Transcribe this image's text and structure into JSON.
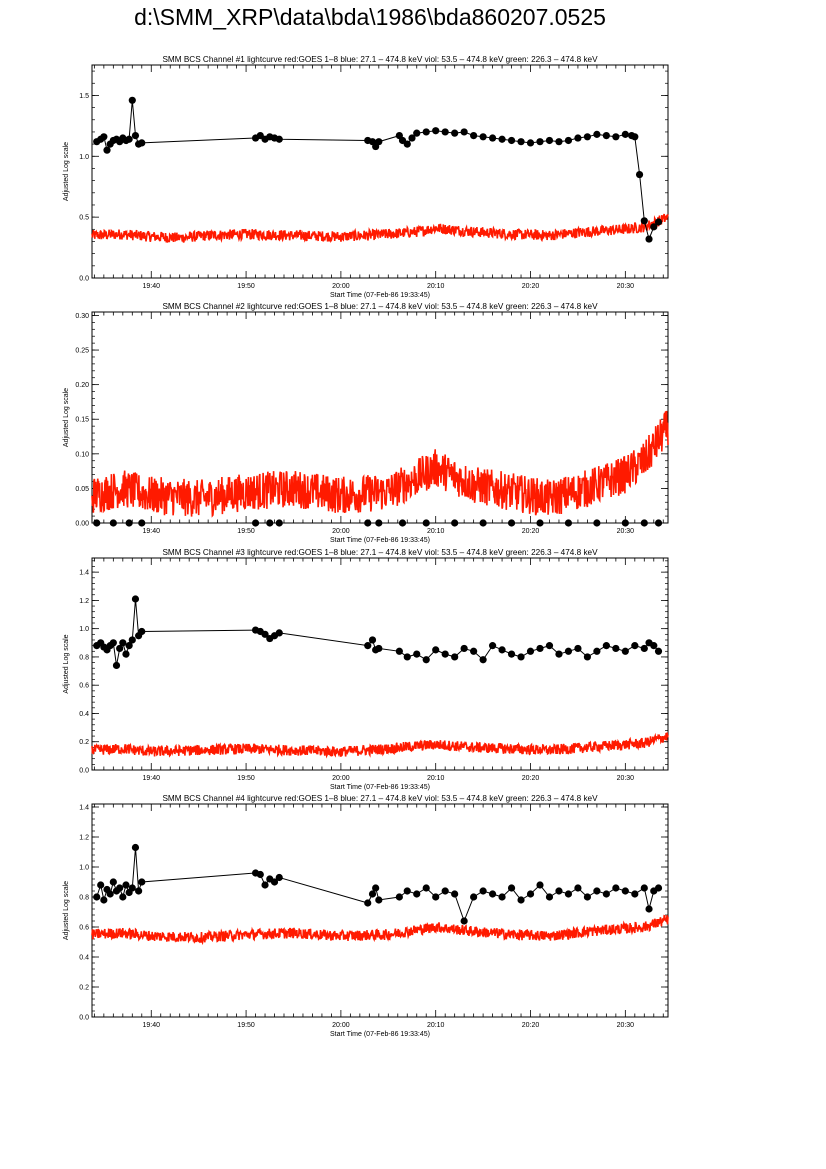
{
  "page": {
    "title": "d:\\SMM_XRP\\data\\bda\\1986\\bda860207.0525"
  },
  "colors": {
    "goes": "#ff1a00",
    "bcs": "#000000",
    "axis": "#000000"
  },
  "chart_data": [
    {
      "type": "line",
      "title": "SMM BCS Channel #1 lightcurve  red:GOES 1–8  blue: 27.1 – 474.8 keV  viol: 53.5 – 474.8 keV  green: 226.3 – 474.8 keV",
      "xlabel": "Start Time (07-Feb-86 19:33:45)",
      "ylabel": "Adjusted Log scale",
      "xlim": [
        "19:33:45",
        "20:34:30"
      ],
      "xticks": [
        "19:40",
        "19:50",
        "20:00",
        "20:10",
        "20:20",
        "20:30"
      ],
      "ylim": [
        0.0,
        1.75
      ],
      "yticks": [
        "0.0",
        "0.5",
        "1.0",
        "1.5"
      ],
      "ytick_values": [
        0.0,
        0.5,
        1.0,
        1.5
      ],
      "series": [
        {
          "color": "black",
          "marker": "circle",
          "x": [
            "19:34:15",
            "19:34:40",
            "19:35:00",
            "19:35:20",
            "19:35:40",
            "19:36:00",
            "19:36:20",
            "19:36:40",
            "19:37:00",
            "19:37:20",
            "19:37:40",
            "19:38:00",
            "19:38:20",
            "19:38:40",
            "19:39:00",
            "19:51:00",
            "19:51:30",
            "19:52:00",
            "19:52:30",
            "19:53:00",
            "19:53:30",
            "20:02:50",
            "20:03:20",
            "20:03:40",
            "20:04:00",
            "20:06:10",
            "20:06:30",
            "20:07:00",
            "20:07:30",
            "20:08:00",
            "20:09:00",
            "20:10:00",
            "20:11:00",
            "20:12:00",
            "20:13:00",
            "20:14:00",
            "20:15:00",
            "20:16:00",
            "20:17:00",
            "20:18:00",
            "20:19:00",
            "20:20:00",
            "20:21:00",
            "20:22:00",
            "20:23:00",
            "20:24:00",
            "20:25:00",
            "20:26:00",
            "20:27:00",
            "20:28:00",
            "20:29:00",
            "20:30:00",
            "20:30:40",
            "20:31:00",
            "20:31:30",
            "20:32:00",
            "20:32:30",
            "20:33:00",
            "20:33:30"
          ],
          "y": [
            1.12,
            1.14,
            1.16,
            1.05,
            1.1,
            1.13,
            1.14,
            1.12,
            1.15,
            1.13,
            1.14,
            1.46,
            1.17,
            1.1,
            1.11,
            1.15,
            1.17,
            1.14,
            1.16,
            1.15,
            1.14,
            1.13,
            1.12,
            1.08,
            1.12,
            1.17,
            1.13,
            1.1,
            1.15,
            1.19,
            1.2,
            1.21,
            1.2,
            1.19,
            1.2,
            1.17,
            1.16,
            1.15,
            1.14,
            1.13,
            1.12,
            1.11,
            1.12,
            1.13,
            1.12,
            1.13,
            1.15,
            1.16,
            1.18,
            1.17,
            1.16,
            1.18,
            1.17,
            1.16,
            0.85,
            0.47,
            0.32,
            0.42,
            0.46
          ]
        },
        {
          "color": "red",
          "x": [
            "19:33:45",
            "19:37:00",
            "19:40:00",
            "19:43:00",
            "19:46:00",
            "19:50:00",
            "19:55:00",
            "20:00:00",
            "20:05:00",
            "20:08:00",
            "20:10:00",
            "20:14:00",
            "20:18:00",
            "20:22:00",
            "20:26:00",
            "20:30:00",
            "20:32:00",
            "20:34:30"
          ],
          "y": [
            0.35,
            0.36,
            0.34,
            0.33,
            0.35,
            0.36,
            0.35,
            0.34,
            0.36,
            0.38,
            0.41,
            0.38,
            0.36,
            0.35,
            0.38,
            0.4,
            0.42,
            0.5
          ]
        }
      ]
    },
    {
      "type": "line",
      "title": "SMM BCS Channel #2 lightcurve  red:GOES 1–8  blue: 27.1 – 474.8 keV  viol: 53.5 – 474.8 keV  green: 226.3 – 474.8 keV",
      "xlabel": "Start Time (07-Feb-86 19:33:45)",
      "ylabel": "Adjusted Log scale",
      "xlim": [
        "19:33:45",
        "20:34:30"
      ],
      "xticks": [
        "19:40",
        "19:50",
        "20:00",
        "20:10",
        "20:20",
        "20:30"
      ],
      "ylim": [
        0.0,
        0.305
      ],
      "yticks": [
        "0.00",
        "0.05",
        "0.10",
        "0.15",
        "0.20",
        "0.25",
        "0.30"
      ],
      "ytick_values": [
        0.0,
        0.05,
        0.1,
        0.15,
        0.2,
        0.25,
        0.3
      ],
      "series": [
        {
          "color": "black",
          "marker": "circle",
          "x": [
            "19:34:15",
            "19:36:00",
            "19:37:40",
            "19:39:00",
            "19:51:00",
            "19:52:30",
            "19:53:30",
            "20:02:50",
            "20:04:00",
            "20:06:30",
            "20:09:00",
            "20:12:00",
            "20:15:00",
            "20:18:00",
            "20:21:00",
            "20:24:00",
            "20:27:00",
            "20:30:00",
            "20:32:00",
            "20:33:30"
          ],
          "y": [
            0.0,
            0.0,
            0.0,
            0.0,
            0.0,
            0.0,
            0.0,
            0.0,
            0.0,
            0.0,
            0.0,
            0.0,
            0.0,
            0.0,
            0.0,
            0.0,
            0.0,
            0.0,
            0.0,
            0.0
          ]
        },
        {
          "color": "red",
          "x": [
            "19:33:45",
            "19:37:00",
            "19:40:00",
            "19:45:00",
            "19:50:00",
            "19:55:00",
            "20:00:00",
            "20:05:00",
            "20:08:00",
            "20:10:00",
            "20:14:00",
            "20:18:00",
            "20:22:00",
            "20:26:00",
            "20:30:00",
            "20:32:00",
            "20:34:30"
          ],
          "y": [
            0.04,
            0.05,
            0.04,
            0.035,
            0.045,
            0.05,
            0.04,
            0.045,
            0.065,
            0.08,
            0.055,
            0.045,
            0.035,
            0.05,
            0.07,
            0.09,
            0.14
          ]
        }
      ]
    },
    {
      "type": "line",
      "title": "SMM BCS Channel #3 lightcurve  red:GOES 1–8  blue: 27.1 – 474.8 keV  viol: 53.5 – 474.8 keV  green: 226.3 – 474.8 keV",
      "xlabel": "Start Time (07-Feb-86 19:33:45)",
      "ylabel": "Adjusted Log scale",
      "xlim": [
        "19:33:45",
        "20:34:30"
      ],
      "xticks": [
        "19:40",
        "19:50",
        "20:00",
        "20:10",
        "20:20",
        "20:30"
      ],
      "ylim": [
        0.0,
        1.5
      ],
      "yticks": [
        "0.0",
        "0.2",
        "0.4",
        "0.6",
        "0.8",
        "1.0",
        "1.2",
        "1.4"
      ],
      "ytick_values": [
        0.0,
        0.2,
        0.4,
        0.6,
        0.8,
        1.0,
        1.2,
        1.4
      ],
      "series": [
        {
          "color": "black",
          "marker": "circle",
          "x": [
            "19:34:15",
            "19:34:40",
            "19:35:00",
            "19:35:20",
            "19:35:40",
            "19:36:00",
            "19:36:20",
            "19:36:40",
            "19:37:00",
            "19:37:20",
            "19:37:40",
            "19:38:00",
            "19:38:20",
            "19:38:40",
            "19:39:00",
            "19:51:00",
            "19:51:30",
            "19:52:00",
            "19:52:30",
            "19:53:00",
            "19:53:30",
            "20:02:50",
            "20:03:20",
            "20:03:40",
            "20:04:00",
            "20:06:10",
            "20:07:00",
            "20:08:00",
            "20:09:00",
            "20:10:00",
            "20:11:00",
            "20:12:00",
            "20:13:00",
            "20:14:00",
            "20:15:00",
            "20:16:00",
            "20:17:00",
            "20:18:00",
            "20:19:00",
            "20:20:00",
            "20:21:00",
            "20:22:00",
            "20:23:00",
            "20:24:00",
            "20:25:00",
            "20:26:00",
            "20:27:00",
            "20:28:00",
            "20:29:00",
            "20:30:00",
            "20:31:00",
            "20:32:00",
            "20:32:30",
            "20:33:00",
            "20:33:30"
          ],
          "y": [
            0.88,
            0.9,
            0.87,
            0.85,
            0.88,
            0.9,
            0.74,
            0.86,
            0.9,
            0.82,
            0.88,
            0.92,
            1.21,
            0.95,
            0.98,
            0.99,
            0.98,
            0.96,
            0.93,
            0.95,
            0.97,
            0.88,
            0.92,
            0.85,
            0.86,
            0.84,
            0.8,
            0.82,
            0.78,
            0.85,
            0.82,
            0.8,
            0.86,
            0.84,
            0.78,
            0.88,
            0.85,
            0.82,
            0.8,
            0.84,
            0.86,
            0.88,
            0.82,
            0.84,
            0.86,
            0.8,
            0.84,
            0.88,
            0.86,
            0.84,
            0.88,
            0.86,
            0.9,
            0.88,
            0.84
          ]
        },
        {
          "color": "red",
          "x": [
            "19:33:45",
            "19:37:00",
            "19:40:00",
            "19:45:00",
            "19:50:00",
            "19:55:00",
            "20:00:00",
            "20:05:00",
            "20:08:00",
            "20:10:00",
            "20:14:00",
            "20:18:00",
            "20:22:00",
            "20:26:00",
            "20:30:00",
            "20:32:00",
            "20:34:30"
          ],
          "y": [
            0.14,
            0.15,
            0.13,
            0.14,
            0.15,
            0.14,
            0.13,
            0.15,
            0.17,
            0.18,
            0.16,
            0.15,
            0.14,
            0.16,
            0.18,
            0.19,
            0.24
          ]
        }
      ]
    },
    {
      "type": "line",
      "title": "SMM BCS Channel #4 lightcurve  red:GOES 1–8  blue: 27.1 – 474.8 keV  viol: 53.5 – 474.8 keV  green: 226.3 – 474.8 keV",
      "xlabel": "Start Time (07-Feb-86 19:33:45)",
      "ylabel": "Adjusted Log scale",
      "xlim": [
        "19:33:45",
        "20:34:30"
      ],
      "xticks": [
        "19:40",
        "19:50",
        "20:00",
        "20:10",
        "20:20",
        "20:30"
      ],
      "ylim": [
        0.0,
        1.42
      ],
      "yticks": [
        "0.0",
        "0.2",
        "0.4",
        "0.6",
        "0.8",
        "1.0",
        "1.2",
        "1.4"
      ],
      "ytick_values": [
        0.0,
        0.2,
        0.4,
        0.6,
        0.8,
        1.0,
        1.2,
        1.4
      ],
      "series": [
        {
          "color": "black",
          "marker": "circle",
          "x": [
            "19:34:15",
            "19:34:40",
            "19:35:00",
            "19:35:20",
            "19:35:40",
            "19:36:00",
            "19:36:20",
            "19:36:40",
            "19:37:00",
            "19:37:20",
            "19:37:40",
            "19:38:00",
            "19:38:20",
            "19:38:40",
            "19:39:00",
            "19:51:00",
            "19:51:30",
            "19:52:00",
            "19:52:30",
            "19:53:00",
            "19:53:30",
            "20:02:50",
            "20:03:20",
            "20:03:40",
            "20:04:00",
            "20:06:10",
            "20:07:00",
            "20:08:00",
            "20:09:00",
            "20:10:00",
            "20:11:00",
            "20:12:00",
            "20:13:00",
            "20:14:00",
            "20:15:00",
            "20:16:00",
            "20:17:00",
            "20:18:00",
            "20:19:00",
            "20:20:00",
            "20:21:00",
            "20:22:00",
            "20:23:00",
            "20:24:00",
            "20:25:00",
            "20:26:00",
            "20:27:00",
            "20:28:00",
            "20:29:00",
            "20:30:00",
            "20:31:00",
            "20:32:00",
            "20:32:30",
            "20:33:00",
            "20:33:30"
          ],
          "y": [
            0.8,
            0.88,
            0.78,
            0.85,
            0.82,
            0.9,
            0.84,
            0.86,
            0.8,
            0.88,
            0.83,
            0.86,
            1.13,
            0.84,
            0.9,
            0.96,
            0.95,
            0.88,
            0.92,
            0.9,
            0.93,
            0.76,
            0.82,
            0.86,
            0.78,
            0.8,
            0.84,
            0.82,
            0.86,
            0.8,
            0.84,
            0.82,
            0.64,
            0.8,
            0.84,
            0.82,
            0.8,
            0.86,
            0.78,
            0.82,
            0.88,
            0.8,
            0.84,
            0.82,
            0.86,
            0.8,
            0.84,
            0.82,
            0.86,
            0.84,
            0.82,
            0.86,
            0.72,
            0.84,
            0.86
          ]
        },
        {
          "color": "red",
          "x": [
            "19:33:45",
            "19:37:00",
            "19:40:00",
            "19:45:00",
            "19:50:00",
            "19:55:00",
            "20:00:00",
            "20:05:00",
            "20:08:00",
            "20:10:00",
            "20:14:00",
            "20:18:00",
            "20:22:00",
            "20:26:00",
            "20:30:00",
            "20:32:00",
            "20:34:30"
          ],
          "y": [
            0.55,
            0.56,
            0.54,
            0.53,
            0.55,
            0.56,
            0.54,
            0.55,
            0.58,
            0.6,
            0.57,
            0.55,
            0.54,
            0.57,
            0.59,
            0.6,
            0.65
          ]
        }
      ]
    }
  ]
}
